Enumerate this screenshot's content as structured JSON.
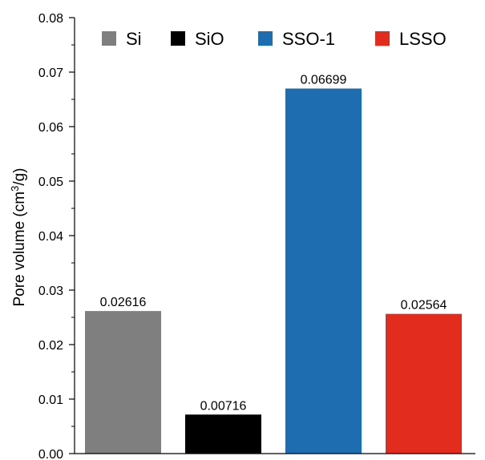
{
  "chart_data": {
    "type": "bar",
    "categories": [
      "Si",
      "SiO",
      "SSO-1",
      "LSSO"
    ],
    "values": [
      0.02616,
      0.00716,
      0.06699,
      0.02564
    ],
    "data_labels": [
      "0.02616",
      "0.00716",
      "0.06699",
      "0.02564"
    ],
    "colors": [
      "#7f7f7f",
      "#000000",
      "#1f6db1",
      "#e12c1e"
    ],
    "ylabel": {
      "prefix": "Pore volume (cm",
      "sup": "3",
      "suffix": "/g)"
    },
    "ylim": [
      0,
      0.08
    ],
    "y_ticks": [
      "0.00",
      "0.01",
      "0.02",
      "0.03",
      "0.04",
      "0.05",
      "0.06",
      "0.07",
      "0.08"
    ],
    "legend": {
      "position": "top",
      "entries": [
        "Si",
        "SiO",
        "SSO-1",
        "LSSO"
      ]
    },
    "grid": false
  }
}
